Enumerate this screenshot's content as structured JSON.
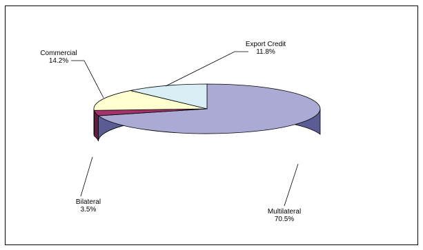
{
  "chart_data": {
    "type": "pie",
    "title": "",
    "categories": [
      "Multilateral",
      "Bilateral",
      "Commercial",
      "Export Credit"
    ],
    "values": [
      70.5,
      3.5,
      14.2,
      11.8
    ],
    "value_labels": [
      "70.5%",
      "3.5%",
      "14.2%",
      "11.8%"
    ],
    "three_d": true,
    "legend": "none",
    "colors": {
      "Multilateral": {
        "top": "#aaaad4",
        "side": "#5c5c94"
      },
      "Bilateral": {
        "top": "#a3336b",
        "side": "#5e1f3c"
      },
      "Commercial": {
        "top": "#ffffd0",
        "side": "#a0a078"
      },
      "Export Credit": {
        "top": "#d8eef4",
        "side": "#8ca0a8"
      }
    }
  }
}
